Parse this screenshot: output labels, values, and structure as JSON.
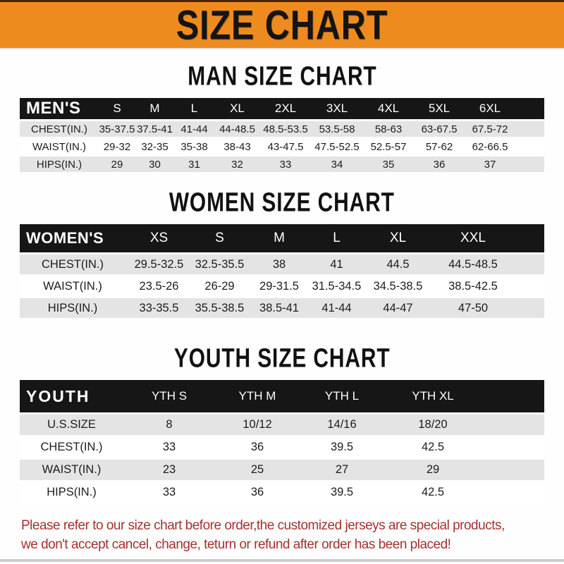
{
  "banner": {
    "title": "SIZE CHART"
  },
  "sections": [
    {
      "title": "MAN SIZE CHART",
      "table": {
        "label": "MEN'S",
        "columns": [
          "S",
          "M",
          "L",
          "XL",
          "2XL",
          "3XL",
          "4XL",
          "5XL",
          "6XL"
        ],
        "rows": [
          {
            "label": "CHEST(IN.)",
            "values": [
              "35-37.5",
              "37.5-41",
              "41-44",
              "44-48.5",
              "48.5-53.5",
              "53.5-58",
              "58-63",
              "63-67.5",
              "67.5-72"
            ]
          },
          {
            "label": "WAIST(IN.)",
            "values": [
              "29-32",
              "32-35",
              "35-38",
              "38-43",
              "43-47.5",
              "47.5-52.5",
              "52.5-57",
              "57-62",
              "62-66.5"
            ]
          },
          {
            "label": "HIPS(IN.)",
            "values": [
              "29",
              "30",
              "31",
              "32",
              "33",
              "34",
              "35",
              "36",
              "37"
            ]
          }
        ]
      }
    },
    {
      "title": "WOMEN SIZE CHART",
      "table": {
        "label": "WOMEN'S",
        "columns": [
          "XS",
          "S",
          "M",
          "L",
          "XL",
          "XXL"
        ],
        "rows": [
          {
            "label": "CHEST(IN.)",
            "values": [
              "29.5-32.5",
              "32.5-35.5",
              "38",
              "41",
              "44.5",
              "44.5-48.5"
            ]
          },
          {
            "label": "WAIST(IN.)",
            "values": [
              "23.5-26",
              "26-29",
              "29-31.5",
              "31.5-34.5",
              "34.5-38.5",
              "38.5-42.5"
            ]
          },
          {
            "label": "HIPS(IN.)",
            "values": [
              "33-35.5",
              "35.5-38.5",
              "38.5-41",
              "41-44",
              "44-47",
              "47-50"
            ]
          }
        ]
      }
    },
    {
      "title": "YOUTH SIZE CHART",
      "table": {
        "label": "YOUTH",
        "columns": [
          "YTH S",
          "YTH M",
          "YTH L",
          "YTH XL"
        ],
        "rows": [
          {
            "label": "U.S.SIZE",
            "values": [
              "8",
              "10/12",
              "14/16",
              "18/20"
            ]
          },
          {
            "label": "CHEST(IN.)",
            "values": [
              "33",
              "36",
              "39.5",
              "42.5"
            ]
          },
          {
            "label": "WAIST(IN.)",
            "values": [
              "23",
              "25",
              "27",
              "29"
            ]
          },
          {
            "label": "HIPS(IN.)",
            "values": [
              "33",
              "36",
              "39.5",
              "42.5"
            ]
          }
        ]
      }
    }
  ],
  "footer": {
    "line1": "Please refer to our size chart before order,the customized jerseys are special products,",
    "line2": "we don't accept cancel, change, teturn or refund after order has been placed!"
  },
  "colors": {
    "banner_orange": "#ee8b1f",
    "header_black": "#161616",
    "row_gray": "#e4e4e4",
    "note_red": "#a3322e"
  }
}
